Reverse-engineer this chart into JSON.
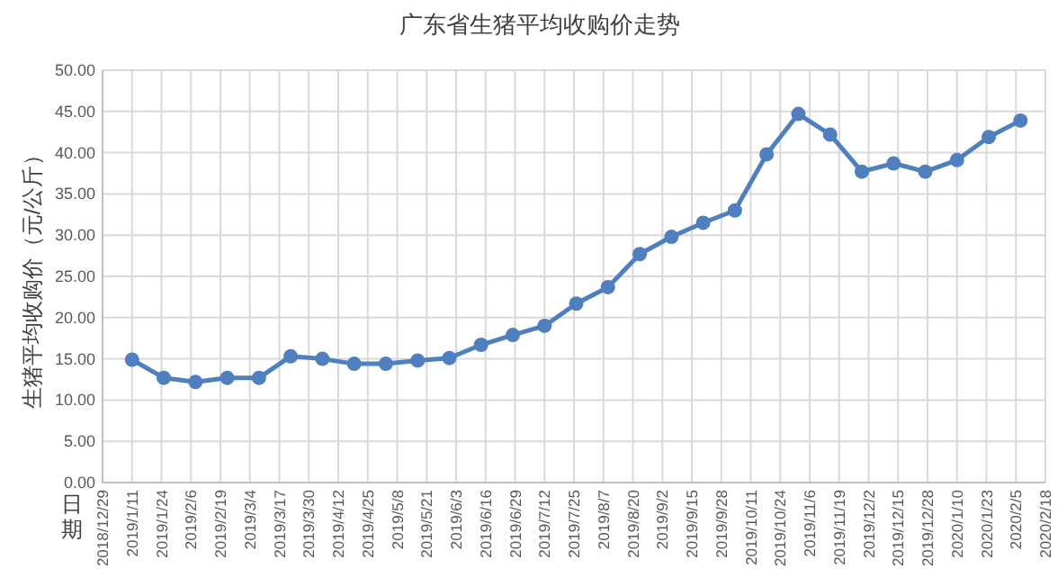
{
  "chart_data": {
    "type": "line",
    "title": "广东省生猪平均收购价走势",
    "xlabel": "日期",
    "ylabel": "生猪平均收购价（元/公斤）",
    "x": [
      "2019-01-11",
      "2019-01-25",
      "2019-02-08",
      "2019-02-22",
      "2019-03-08",
      "2019-03-22",
      "2019-04-05",
      "2019-04-19",
      "2019-05-03",
      "2019-05-17",
      "2019-05-31",
      "2019-06-14",
      "2019-06-28",
      "2019-07-12",
      "2019-07-26",
      "2019-08-09",
      "2019-08-23",
      "2019-09-06",
      "2019-09-20",
      "2019-10-04",
      "2019-10-18",
      "2019-11-01",
      "2019-11-15",
      "2019-11-29",
      "2019-12-13",
      "2019-12-27",
      "2020-01-10",
      "2020-01-24",
      "2020-02-07"
    ],
    "series": [
      {
        "color": "#4f7fbe",
        "values": [
          14.9,
          12.7,
          12.2,
          12.7,
          12.7,
          15.3,
          15.0,
          14.4,
          14.4,
          14.8,
          15.1,
          16.7,
          17.9,
          19.0,
          21.7,
          23.7,
          27.7,
          29.8,
          31.5,
          33.0,
          39.8,
          44.7,
          42.2,
          37.7,
          38.7,
          37.7,
          39.1,
          41.9,
          43.9
        ]
      }
    ],
    "xlim": [
      "2018-12-29",
      "2020-02-18"
    ],
    "xticks": [
      {
        "value": "2018-12-29",
        "label": "2018/12/29"
      },
      {
        "value": "2019-01-11",
        "label": "2019/1/11"
      },
      {
        "value": "2019-01-24",
        "label": "2019/1/24"
      },
      {
        "value": "2019-02-06",
        "label": "2019/2/6"
      },
      {
        "value": "2019-02-19",
        "label": "2019/2/19"
      },
      {
        "value": "2019-03-04",
        "label": "2019/3/4"
      },
      {
        "value": "2019-03-17",
        "label": "2019/3/17"
      },
      {
        "value": "2019-03-30",
        "label": "2019/3/30"
      },
      {
        "value": "2019-04-12",
        "label": "2019/4/12"
      },
      {
        "value": "2019-04-25",
        "label": "2019/4/25"
      },
      {
        "value": "2019-05-08",
        "label": "2019/5/8"
      },
      {
        "value": "2019-05-21",
        "label": "2019/5/21"
      },
      {
        "value": "2019-06-03",
        "label": "2019/6/3"
      },
      {
        "value": "2019-06-16",
        "label": "2019/6/16"
      },
      {
        "value": "2019-06-29",
        "label": "2019/6/29"
      },
      {
        "value": "2019-07-12",
        "label": "2019/7/12"
      },
      {
        "value": "2019-07-25",
        "label": "2019/7/25"
      },
      {
        "value": "2019-08-07",
        "label": "2019/8/7"
      },
      {
        "value": "2019-08-20",
        "label": "2019/8/20"
      },
      {
        "value": "2019-09-02",
        "label": "2019/9/2"
      },
      {
        "value": "2019-09-15",
        "label": "2019/9/15"
      },
      {
        "value": "2019-09-28",
        "label": "2019/9/28"
      },
      {
        "value": "2019-10-11",
        "label": "2019/10/11"
      },
      {
        "value": "2019-10-24",
        "label": "2019/10/24"
      },
      {
        "value": "2019-11-06",
        "label": "2019/11/6"
      },
      {
        "value": "2019-11-19",
        "label": "2019/11/19"
      },
      {
        "value": "2019-12-02",
        "label": "2019/12/2"
      },
      {
        "value": "2019-12-15",
        "label": "2019/12/15"
      },
      {
        "value": "2019-12-28",
        "label": "2019/12/28"
      },
      {
        "value": "2020-01-10",
        "label": "2020/1/10"
      },
      {
        "value": "2020-01-23",
        "label": "2020/1/23"
      },
      {
        "value": "2020-02-05",
        "label": "2020/2/5"
      },
      {
        "value": "2020-02-18",
        "label": "2020/2/18"
      }
    ],
    "ylim": [
      0,
      50
    ],
    "yticks": [
      {
        "value": 0,
        "label": "0.00"
      },
      {
        "value": 5,
        "label": "5.00"
      },
      {
        "value": 10,
        "label": "10.00"
      },
      {
        "value": 15,
        "label": "15.00"
      },
      {
        "value": 20,
        "label": "20.00"
      },
      {
        "value": 25,
        "label": "25.00"
      },
      {
        "value": 30,
        "label": "30.00"
      },
      {
        "value": 35,
        "label": "35.00"
      },
      {
        "value": 40,
        "label": "40.00"
      },
      {
        "value": 45,
        "label": "45.00"
      },
      {
        "value": 50,
        "label": "50.00"
      }
    ],
    "grid": true,
    "marker": "circle",
    "line_style": "solid"
  }
}
